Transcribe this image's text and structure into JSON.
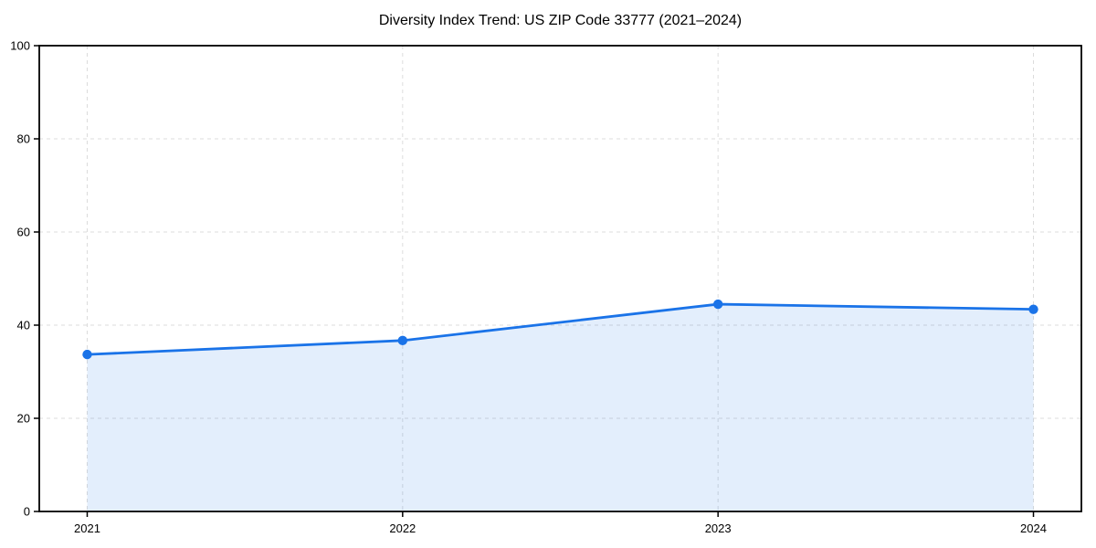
{
  "chart_data": {
    "type": "line",
    "title": "Diversity Index Trend: US ZIP Code 33777 (2021–2024)",
    "categories": [
      "2021",
      "2022",
      "2023",
      "2024"
    ],
    "series": [
      {
        "name": "Diversity Index",
        "values": [
          33.7,
          36.7,
          44.5,
          43.4
        ]
      }
    ],
    "xlabel": "",
    "ylabel": "",
    "ylim": [
      0,
      100
    ],
    "yticks": [
      0,
      20,
      40,
      60,
      80,
      100
    ],
    "grid": true,
    "grid_style": "dashed",
    "area_fill": true,
    "markers": "circle",
    "legend": false,
    "colors": {
      "line": "#1a73e8",
      "fill": "#1a73e8",
      "fill_opacity": 0.12,
      "grid": "#dcdcdc",
      "axis": "#000000",
      "text": "#000000",
      "background": "#ffffff"
    }
  }
}
